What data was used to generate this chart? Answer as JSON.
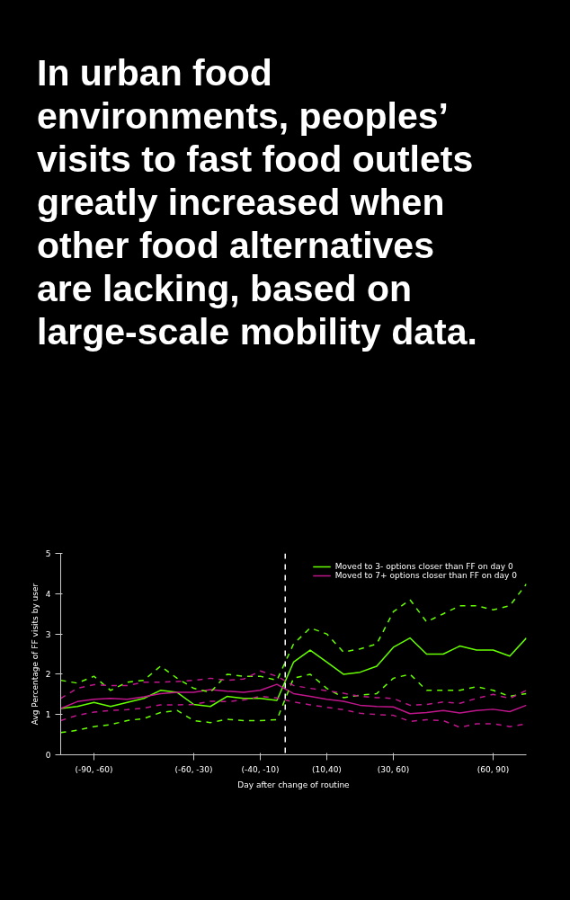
{
  "chart_data": {
    "type": "line",
    "title": "In urban food environments, peoples’ visits to fast food outlets greatly increased when other food alternatives are lacking, based on large-scale mobility data.",
    "xlabel": "Day after change of routine",
    "ylabel": "Avg Percentage of FF visits by user",
    "categories": [
      null,
      null,
      "(-90, -60)",
      null,
      null,
      null,
      null,
      null,
      "(-60, -30)",
      null,
      null,
      null,
      "(-40, -10)",
      null,
      null,
      null,
      "(10,40)",
      null,
      null,
      null,
      "(30, 60)",
      null,
      null,
      null,
      null,
      null,
      "(60, 90)",
      null,
      null
    ],
    "ylim": [
      0,
      5
    ],
    "yticks": [
      0,
      1,
      2,
      3,
      4,
      5
    ],
    "series": [
      {
        "name": "Moved to 3- options closer than FF on day 0",
        "color": "#66ff00",
        "line_style": "solid",
        "values": [
          1.15,
          1.2,
          1.3,
          1.2,
          1.3,
          1.4,
          1.6,
          1.55,
          1.25,
          1.2,
          1.45,
          1.4,
          1.4,
          1.35,
          2.3,
          2.6,
          2.3,
          2.0,
          2.05,
          2.2,
          2.67,
          2.9,
          2.5,
          2.5,
          2.7,
          2.6,
          2.6,
          2.45,
          2.9
        ]
      },
      {
        "name": "Moved to 7+ options closer than FF on day 0",
        "color": "#c0168c",
        "line_style": "solid",
        "values": [
          1.15,
          1.32,
          1.38,
          1.4,
          1.38,
          1.44,
          1.52,
          1.55,
          1.55,
          1.62,
          1.58,
          1.55,
          1.6,
          1.75,
          1.52,
          1.45,
          1.38,
          1.33,
          1.23,
          1.2,
          1.19,
          1.02,
          1.05,
          1.1,
          1.04,
          1.1,
          1.13,
          1.07,
          1.23
        ]
      },
      {
        "color": "#66ff00",
        "line_style": "dashed",
        "values": [
          1.85,
          1.78,
          1.95,
          1.6,
          1.8,
          1.85,
          2.2,
          1.9,
          1.65,
          1.55,
          2.0,
          1.95,
          1.95,
          1.85,
          2.75,
          3.15,
          3.0,
          2.55,
          2.63,
          2.75,
          3.55,
          3.85,
          3.3,
          3.5,
          3.7,
          3.7,
          3.6,
          3.7,
          4.24
        ]
      },
      {
        "color": "#66ff00",
        "line_style": "dashed",
        "values": [
          0.55,
          0.61,
          0.7,
          0.75,
          0.85,
          0.9,
          1.05,
          1.1,
          0.85,
          0.8,
          0.88,
          0.85,
          0.85,
          0.87,
          1.9,
          2.0,
          1.65,
          1.42,
          1.48,
          1.52,
          1.9,
          2.0,
          1.6,
          1.6,
          1.6,
          1.69,
          1.6,
          1.45,
          1.52
        ]
      },
      {
        "color": "#c0168c",
        "line_style": "dashed",
        "values": [
          1.4,
          1.65,
          1.74,
          1.72,
          1.72,
          1.8,
          1.8,
          1.82,
          1.85,
          1.9,
          1.85,
          1.88,
          2.08,
          1.95,
          1.72,
          1.65,
          1.59,
          1.53,
          1.45,
          1.42,
          1.4,
          1.23,
          1.25,
          1.31,
          1.28,
          1.4,
          1.5,
          1.4,
          1.6
        ]
      },
      {
        "color": "#c0168c",
        "line_style": "dashed",
        "values": [
          0.85,
          0.98,
          1.06,
          1.1,
          1.12,
          1.16,
          1.24,
          1.24,
          1.25,
          1.33,
          1.32,
          1.36,
          1.45,
          1.41,
          1.31,
          1.24,
          1.18,
          1.12,
          1.03,
          1.0,
          0.98,
          0.83,
          0.87,
          0.85,
          0.68,
          0.77,
          0.77,
          0.7,
          0.77
        ]
      }
    ],
    "legend": "top right",
    "grid": false
  }
}
